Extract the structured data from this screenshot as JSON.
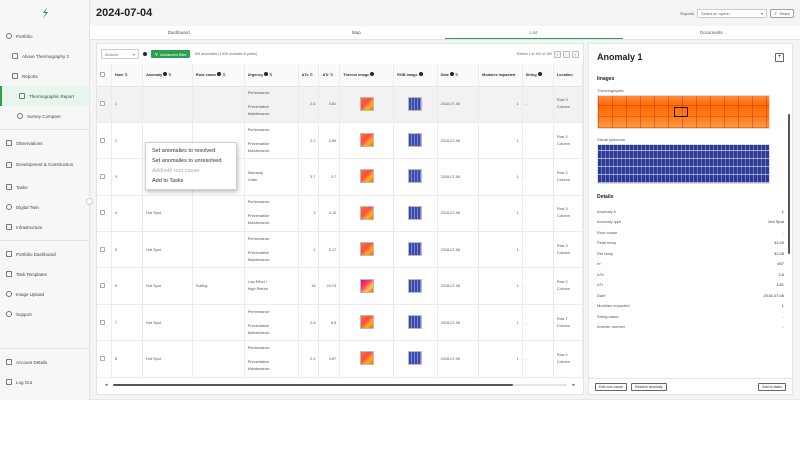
{
  "sidebar": {
    "items": [
      {
        "label": "Portfolio",
        "level": 0
      },
      {
        "label": "Above Thermography 2",
        "level": 1
      },
      {
        "label": "Reports",
        "level": 1
      },
      {
        "label": "Thermographic Report",
        "level": 2,
        "active": true
      },
      {
        "label": "Survey Compare",
        "level": 2
      },
      {
        "label": "Observations",
        "level": 0
      },
      {
        "label": "Development & Construction",
        "level": 0
      },
      {
        "label": "Tasks",
        "level": 0
      },
      {
        "label": "Digital Twin",
        "level": 0
      },
      {
        "label": "Infrastructure",
        "level": 0
      },
      {
        "label": "Portfolio Dashboard",
        "level": 0
      },
      {
        "label": "Task Templates",
        "level": 0
      },
      {
        "label": "Image Upload",
        "level": 0
      },
      {
        "label": "Support",
        "level": 0
      }
    ],
    "bottom": [
      {
        "label": "Account Details"
      },
      {
        "label": "Log Out"
      }
    ]
  },
  "header": {
    "title": "2024-07-04",
    "select_label": "Exports",
    "select_placeholder": "Select an option",
    "share_label": "Share"
  },
  "tabs": [
    {
      "label": "Dashboard",
      "active": false
    },
    {
      "label": "Map",
      "active": false
    },
    {
      "label": "List",
      "active": true
    },
    {
      "label": "Documents",
      "active": false
    }
  ],
  "toolbar": {
    "actions_label": "Actions",
    "advanced_filter_label": "Advanced filter",
    "count_text": "169 anomalies (1,528 modules of parks)",
    "pager_text": "Entries 1 to 100 of 169"
  },
  "table": {
    "columns": [
      "Num",
      "Anomaly",
      "Root cause",
      "Urgency",
      "ΔTe",
      "ΔTr",
      "Thermo image",
      "RGB image",
      "Date",
      "Modules impacted",
      "String",
      "Location"
    ],
    "rows": [
      {
        "num": "1",
        "anomaly": "",
        "root": "",
        "urgency": [
          "Performance",
          "",
          "Preventative",
          "Maintenance"
        ],
        "dte": "2.6",
        "dtr": "3.81",
        "thermo": "normal",
        "date": "2018-07-06",
        "modules": "1",
        "string": "-",
        "location": [
          "Row 3",
          "Column"
        ],
        "selected": true
      },
      {
        "num": "2",
        "anomaly": "",
        "root": "",
        "urgency": [
          "Performance",
          "",
          "Preventative",
          "Maintenance"
        ],
        "dte": "2.2",
        "dtr": "3.69",
        "thermo": "normal",
        "date": "2018-07-06",
        "modules": "1",
        "string": "-",
        "location": [
          "Row 2",
          "Column"
        ]
      },
      {
        "num": "3",
        "anomaly": "Heated Substring",
        "root": "",
        "urgency": [
          "Warranty",
          "Claim"
        ],
        "dte": "3.7",
        "dtr": "3.7",
        "thermo": "normal",
        "date": "2018-07-06",
        "modules": "1",
        "string": "-",
        "location": [
          "Row 2",
          "Column"
        ]
      },
      {
        "num": "4",
        "anomaly": "Hot Spot",
        "root": "",
        "urgency": [
          "Performance",
          "",
          "Preventative",
          "Maintenance"
        ],
        "dte": "3",
        "dtr": "4.15",
        "thermo": "normal",
        "date": "2018-07-06",
        "modules": "1",
        "string": "-",
        "location": [
          "Row 3",
          "Column"
        ]
      },
      {
        "num": "5",
        "anomaly": "Hot Spot",
        "root": "",
        "urgency": [
          "Performance",
          "",
          "Preventative",
          "Maintenance"
        ],
        "dte": "2",
        "dtr": "3.17",
        "thermo": "normal",
        "date": "2018-07-06",
        "modules": "1",
        "string": "-",
        "location": [
          "Row 3",
          "Column"
        ]
      },
      {
        "num": "6",
        "anomaly": "Hot Spot",
        "root": "Soiling",
        "urgency": [
          "Low Effort /",
          "High Return"
        ],
        "dte": "18",
        "dtr": "24.74",
        "thermo": "hot",
        "date": "2018-07-06",
        "modules": "1",
        "string": "-",
        "location": [
          "Row 2",
          "Column"
        ]
      },
      {
        "num": "7",
        "anomaly": "Hot Spot",
        "root": "",
        "urgency": [
          "Performance",
          "",
          "Preventative",
          "Maintenance"
        ],
        "dte": "2.8",
        "dtr": "8.5",
        "thermo": "normal",
        "date": "2018-07-06",
        "modules": "1",
        "string": "-",
        "location": [
          "Row 7",
          "Column"
        ]
      },
      {
        "num": "8",
        "anomaly": "Hot Spot",
        "root": "",
        "urgency": [
          "Performance",
          "",
          "Preventative",
          "Maintenance"
        ],
        "dte": "2.2",
        "dtr": "3.87",
        "thermo": "normal",
        "date": "2018-07-06",
        "modules": "1",
        "string": "-",
        "location": [
          "Row 4",
          "Column"
        ]
      }
    ]
  },
  "context_menu": {
    "items": [
      {
        "label": "Set anomalies to resolved",
        "disabled": false
      },
      {
        "label": "Set anomalies to unresolved",
        "disabled": false
      },
      {
        "label": "Add/edit root cause",
        "disabled": true
      },
      {
        "label": "Add to Tasks",
        "disabled": false
      }
    ]
  },
  "detail": {
    "title": "Anomaly 1",
    "images_title": "Images",
    "thermo_label": "Thermographic",
    "rgb_label": "Visual spectrum",
    "details_title": "Details",
    "fields": [
      {
        "k": "Anomaly #",
        "v": "1"
      },
      {
        "k": "Anomaly type",
        "v": "Hot Spot"
      },
      {
        "k": "Root cause",
        "v": "-"
      },
      {
        "k": "Peak temp",
        "v": "33.09"
      },
      {
        "k": "Ref temp",
        "v": "32.08"
      },
      {
        "k": "Irr",
        "v": "697"
      },
      {
        "k": "ΔTe",
        "v": "2.6"
      },
      {
        "k": "ΔTr",
        "v": "3.81"
      },
      {
        "k": "Date",
        "v": "2018-07-06"
      },
      {
        "k": "Modules impacted",
        "v": "1"
      },
      {
        "k": "String name",
        "v": "-"
      },
      {
        "k": "Inverter number",
        "v": "-"
      }
    ],
    "footer": {
      "edit_root_cause": "Edit root cause",
      "resolve": "Resolve anomaly",
      "add_to_tasks": "Add to tasks"
    }
  },
  "colors": {
    "accent": "#2e9e4f",
    "sidebar_bg": "#f7f7f8"
  }
}
